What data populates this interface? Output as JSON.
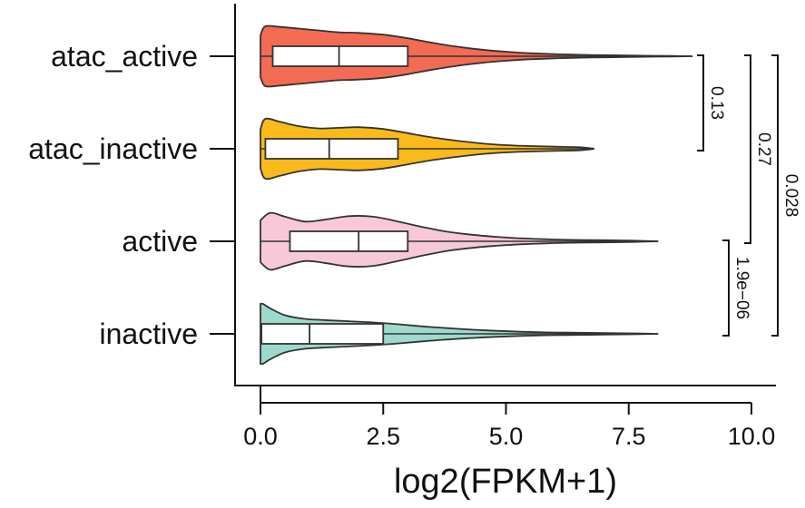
{
  "chart_data": {
    "type": "violin",
    "title": "",
    "xlabel": "log2(FPKM+1)",
    "ylabel": "",
    "xlim": [
      -0.5,
      10.5
    ],
    "x_ticks": [
      0.0,
      2.5,
      5.0,
      7.5,
      10.0
    ],
    "x_tick_labels": [
      "0.0",
      "2.5",
      "5.0",
      "7.5",
      "10.0"
    ],
    "grid": false,
    "legend": "none",
    "orientation": "horizontal",
    "series": [
      {
        "name": "atac_active",
        "color": "#F26B52",
        "min": 0.0,
        "q1": 0.25,
        "median": 1.6,
        "q3": 3.0,
        "max": 8.8,
        "density_x": [
          0.0,
          0.1,
          0.4,
          0.8,
          1.2,
          1.6,
          2.0,
          2.5,
          3.0,
          3.5,
          4.0,
          4.5,
          5.0,
          5.5,
          6.0,
          6.5,
          7.0,
          7.5,
          8.0,
          8.8
        ],
        "density": [
          0.7,
          1.0,
          0.98,
          0.92,
          0.86,
          0.8,
          0.78,
          0.72,
          0.6,
          0.45,
          0.32,
          0.22,
          0.15,
          0.1,
          0.07,
          0.05,
          0.035,
          0.025,
          0.015,
          0.0
        ]
      },
      {
        "name": "atac_inactive",
        "color": "#FBBA1B",
        "min": 0.0,
        "q1": 0.1,
        "median": 1.4,
        "q3": 2.8,
        "max": 6.8,
        "density_x": [
          0.0,
          0.1,
          0.4,
          0.8,
          1.2,
          1.6,
          2.0,
          2.5,
          3.0,
          3.5,
          4.0,
          4.5,
          5.0,
          5.5,
          6.0,
          6.5,
          6.8
        ],
        "density": [
          0.65,
          1.0,
          0.9,
          0.75,
          0.68,
          0.7,
          0.72,
          0.66,
          0.52,
          0.38,
          0.27,
          0.18,
          0.12,
          0.09,
          0.07,
          0.05,
          0.0
        ]
      },
      {
        "name": "active",
        "color": "#F7C9D8",
        "min": 0.0,
        "q1": 0.6,
        "median": 2.0,
        "q3": 3.0,
        "max": 8.1,
        "density_x": [
          0.0,
          0.2,
          0.5,
          0.9,
          1.3,
          1.8,
          2.3,
          2.8,
          3.3,
          3.8,
          4.3,
          4.8,
          5.3,
          5.8,
          6.3,
          7.0,
          7.6,
          8.1
        ],
        "density": [
          0.7,
          0.95,
          0.82,
          0.66,
          0.72,
          0.84,
          0.82,
          0.66,
          0.48,
          0.32,
          0.22,
          0.15,
          0.1,
          0.07,
          0.05,
          0.035,
          0.02,
          0.0
        ]
      },
      {
        "name": "inactive",
        "color": "#9DD9CC",
        "min": 0.0,
        "q1": 0.02,
        "median": 1.0,
        "q3": 2.5,
        "max": 8.1,
        "density_x": [
          0.0,
          0.05,
          0.2,
          0.5,
          0.9,
          1.3,
          1.8,
          2.3,
          2.8,
          3.3,
          3.8,
          4.3,
          4.8,
          5.3,
          5.8,
          6.3,
          7.0,
          7.6,
          8.1
        ],
        "density": [
          1.0,
          1.0,
          0.85,
          0.62,
          0.5,
          0.46,
          0.42,
          0.38,
          0.32,
          0.25,
          0.19,
          0.14,
          0.1,
          0.07,
          0.05,
          0.04,
          0.025,
          0.015,
          0.0
        ]
      }
    ],
    "comparisons": [
      {
        "from": "atac_active",
        "to": "atac_inactive",
        "label": "0.13",
        "lane": 0
      },
      {
        "from": "atac_active",
        "to": "active",
        "label": "0.27",
        "lane": 1
      },
      {
        "from": "active",
        "to": "inactive",
        "label": "1.9e−06",
        "lane": 0
      },
      {
        "from": "atac_active",
        "to": "inactive",
        "label": "0.028",
        "lane": 2
      }
    ]
  }
}
